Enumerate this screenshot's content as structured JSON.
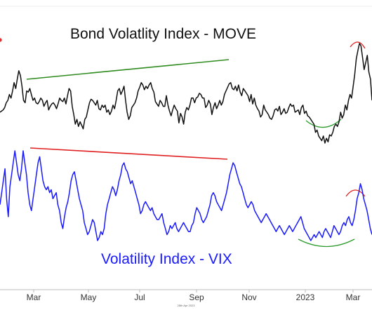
{
  "colors": {
    "move_line": "#111111",
    "vix_line": "#1a1aff",
    "resistance_up": "#2e8b1e",
    "resistance_down": "#e02020",
    "peak_arc": "#e02020",
    "trough_arc": "#2e9b2e",
    "axis": "#bbbbbb",
    "corner_mark": "#e02020"
  },
  "chart_data": [
    {
      "type": "line",
      "title": "Bond Volatlity Index - MOVE",
      "x_labels": [
        "Mar",
        "May",
        "Jul",
        "Sep",
        "Nov",
        "2023",
        "Mar"
      ],
      "series": [
        {
          "values": [
            140,
            141,
            142,
            144,
            148,
            150,
            155,
            152,
            158,
            165,
            160,
            168,
            175,
            171,
            162,
            150,
            148,
            158,
            157,
            160,
            155,
            150,
            152,
            148,
            147,
            149,
            152,
            150,
            145,
            148,
            150,
            142,
            145,
            147,
            148,
            146,
            143,
            147,
            152,
            150,
            149,
            152,
            147,
            154,
            160,
            158,
            145,
            138,
            130,
            134,
            128,
            132,
            129,
            126,
            134,
            136,
            142,
            148,
            151,
            150,
            148,
            146,
            150,
            143,
            142,
            146,
            144,
            146,
            140,
            142,
            138,
            141,
            146,
            143,
            150,
            158,
            160,
            155,
            158,
            162,
            150,
            140,
            134,
            137,
            144,
            146,
            148,
            152,
            158,
            161,
            165,
            163,
            159,
            162,
            160,
            163,
            165,
            160,
            157,
            149,
            147,
            145,
            150,
            148,
            145,
            145,
            154,
            146,
            141,
            137,
            142,
            146,
            143,
            141,
            131,
            139,
            136,
            130,
            140,
            144,
            142,
            146,
            152,
            152,
            148,
            152,
            153,
            156,
            155,
            152,
            152,
            144,
            146,
            150,
            147,
            138,
            144,
            148,
            143,
            146,
            150,
            146,
            149,
            155,
            158,
            161,
            164,
            165,
            160,
            159,
            162,
            158,
            163,
            157,
            154,
            160,
            158,
            156,
            154,
            149,
            155,
            147,
            152,
            146,
            143,
            141,
            136,
            138,
            146,
            142,
            140,
            138,
            135,
            134,
            137,
            142,
            143,
            141,
            145,
            138,
            140,
            143,
            139,
            140,
            144,
            147,
            145,
            146,
            140,
            141,
            142,
            138,
            144,
            146,
            139,
            141,
            137,
            136,
            134,
            132,
            130,
            123,
            125,
            120,
            118,
            116,
            120,
            114,
            118,
            115,
            121,
            120,
            123,
            128,
            130,
            128,
            132,
            140,
            135,
            138,
            146,
            142,
            150,
            155,
            152,
            162,
            172,
            185,
            192,
            198,
            196,
            186,
            176,
            182,
            188,
            174,
            168,
            150
          ]
        }
      ],
      "annotations": [
        "rising resistance line",
        "peak arc",
        "trough arc"
      ]
    },
    {
      "type": "line",
      "title": "Volatility Index - VIX",
      "x_labels": [
        "Mar",
        "May",
        "Jul",
        "Sep",
        "Nov",
        "2023",
        "Mar"
      ],
      "series": [
        {
          "values": [
            26.0,
            28.0,
            30.0,
            32.0,
            27.0,
            24.0,
            29.0,
            31.0,
            33.0,
            35.0,
            33.0,
            31.0,
            30.0,
            32.0,
            35.0,
            33.0,
            31.0,
            28.0,
            26.0,
            25.0,
            27.0,
            29.0,
            31.0,
            33.0,
            34.0,
            32.0,
            30.0,
            29.0,
            28.5,
            29.0,
            28.0,
            28.5,
            27.0,
            27.5,
            28.0,
            26.0,
            25.0,
            23.0,
            22.0,
            24.0,
            25.5,
            26.5,
            28.0,
            30.0,
            31.0,
            31.5,
            30.0,
            28.5,
            27.0,
            26.0,
            25.0,
            23.0,
            22.0,
            21.0,
            21.5,
            22.5,
            23.5,
            23.0,
            21.5,
            20.0,
            20.5,
            21.5,
            21.0,
            22.0,
            24.5,
            26.0,
            27.0,
            28.0,
            29.0,
            28.5,
            27.5,
            28.5,
            30.0,
            31.0,
            32.5,
            33.0,
            32.0,
            31.5,
            30.5,
            29.5,
            30.0,
            29.0,
            28.0,
            27.0,
            26.0,
            24.5,
            25.0,
            26.0,
            26.5,
            26.0,
            25.5,
            25.0,
            25.5,
            24.5,
            24.0,
            23.5,
            23.5,
            24.0,
            24.5,
            23.0,
            22.0,
            21.0,
            21.5,
            22.5,
            22.0,
            22.5,
            23.0,
            22.0,
            21.5,
            22.0,
            22.5,
            23.0,
            22.5,
            22.0,
            21.5,
            21.5,
            22.5,
            23.0,
            24.5,
            25.5,
            25.0,
            24.5,
            23.5,
            23.0,
            23.5,
            24.0,
            25.0,
            26.0,
            27.5,
            28.0,
            27.5,
            26.5,
            26.0,
            25.5,
            25.0,
            26.0,
            27.0,
            28.0,
            29.5,
            31.0,
            32.0,
            33.0,
            32.5,
            31.5,
            30.5,
            29.5,
            29.0,
            28.0,
            27.0,
            26.0,
            25.5,
            26.0,
            26.5,
            26.0,
            25.0,
            24.5,
            24.0,
            23.5,
            23.0,
            23.5,
            24.0,
            24.5,
            24.0,
            23.5,
            23.0,
            22.5,
            22.0,
            21.5,
            22.0,
            22.5,
            22.0,
            21.5,
            21.0,
            21.5,
            22.0,
            22.5,
            22.0,
            21.5,
            22.0,
            22.5,
            23.0,
            23.5,
            24.0,
            23.0,
            22.0,
            21.5,
            21.0,
            20.5,
            20.0,
            20.5,
            21.0,
            20.5,
            21.0,
            21.5,
            21.0,
            20.5,
            21.5,
            22.0,
            21.5,
            21.0,
            20.5,
            21.5,
            22.5,
            22.0,
            21.5,
            21.0,
            21.5,
            22.5,
            23.0,
            22.5,
            23.5,
            24.0,
            23.0,
            22.5,
            23.5,
            25.0,
            27.0,
            28.0,
            29.5,
            28.5,
            27.0,
            26.0,
            25.0,
            23.5,
            22.0,
            21.0
          ]
        }
      ],
      "annotations": [
        "falling resistance line",
        "peak arc",
        "trough arc"
      ]
    }
  ],
  "footer_date": "28th Apr 2023"
}
